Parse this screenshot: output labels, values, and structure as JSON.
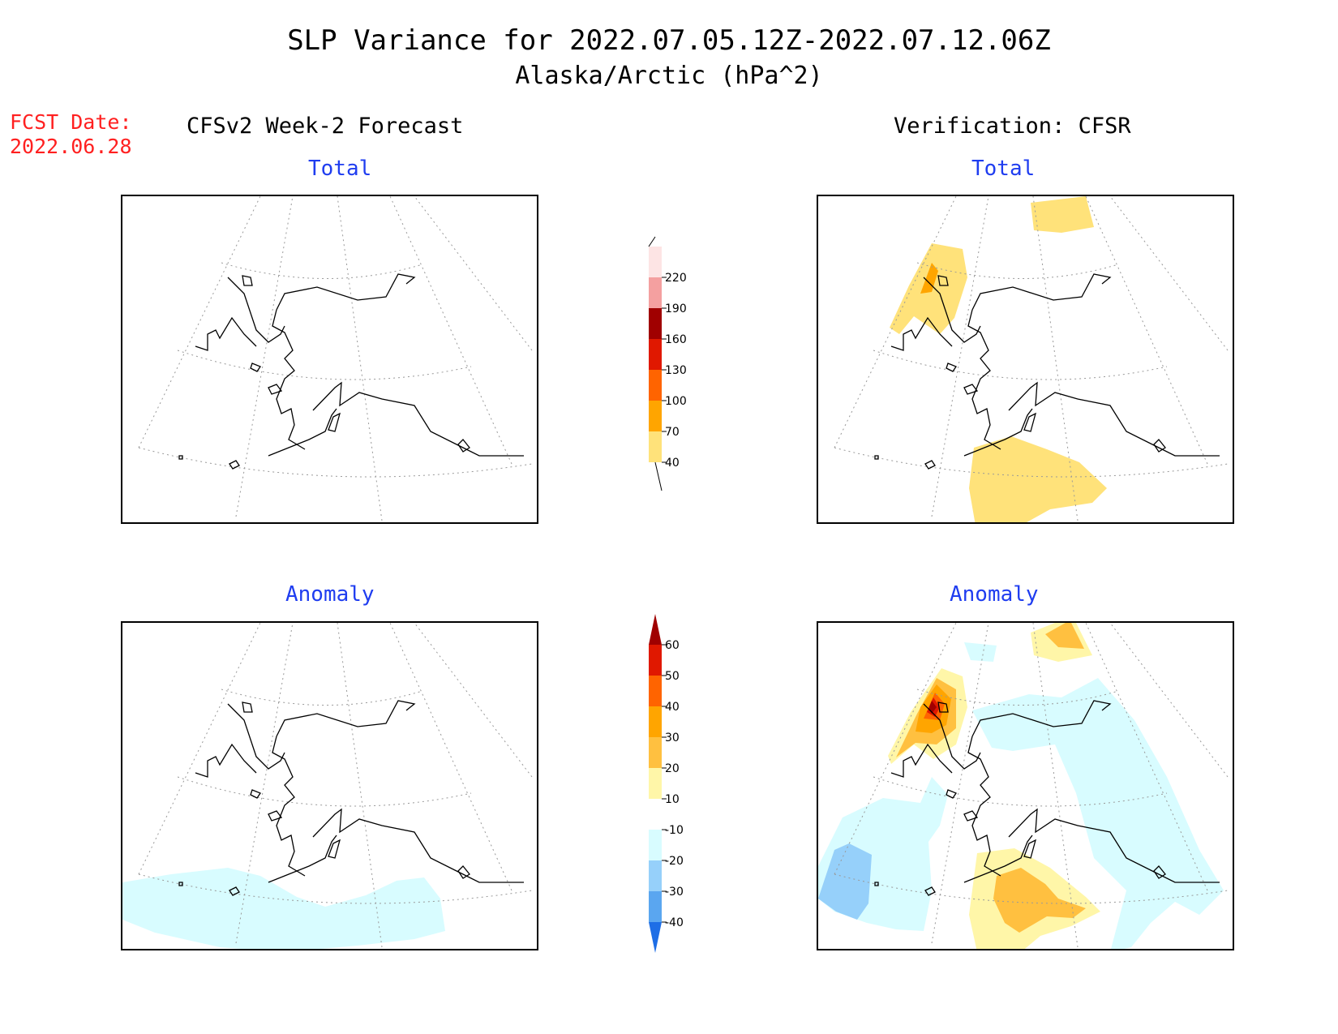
{
  "title": "SLP Variance for 2022.07.05.12Z-2022.07.12.06Z",
  "subtitle": "Alaska/Arctic (hPa^2)",
  "fcst_date_label": "FCST Date:",
  "fcst_date_value": "2022.06.28",
  "left_header": "CFSv2 Week-2 Forecast",
  "right_header": "Verification: CFSR",
  "panels": {
    "top_left": "Total",
    "top_right": "Total",
    "bottom_left": "Anomaly",
    "bottom_right": "Anomaly"
  },
  "total_colorbar": {
    "levels": [
      "40",
      "70",
      "100",
      "130",
      "160",
      "190",
      "220"
    ],
    "colors": [
      "#ffe27a",
      "#ffa500",
      "#ff6400",
      "#e01800",
      "#a00000",
      "#f4a0a0",
      "#fde4e4"
    ]
  },
  "anomaly_colorbar": {
    "levels": [
      "60",
      "50",
      "40",
      "30",
      "20",
      "10",
      "-10",
      "-20",
      "-30",
      "-40"
    ],
    "colors_top_to_bottom": [
      "#a00000",
      "#e01800",
      "#ff6400",
      "#ffa500",
      "#ffc040",
      "#fff6a8",
      "#ffffff",
      "#d8fcff",
      "#96d0fa",
      "#5aa6f0",
      "#1e6ee6"
    ]
  }
}
